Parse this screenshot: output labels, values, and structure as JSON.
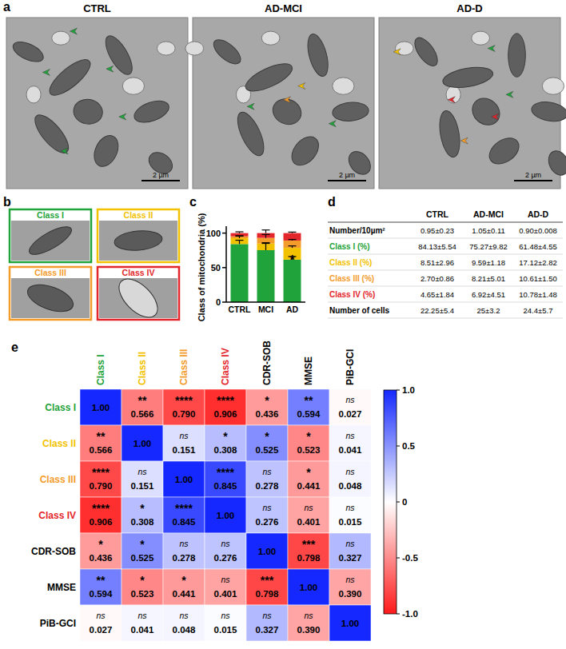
{
  "figure": {
    "panel_a": {
      "letter": "a",
      "images": [
        {
          "title": "CTRL",
          "scale_bar": "2 µm"
        },
        {
          "title": "AD-MCI",
          "scale_bar": "2 µm"
        },
        {
          "title": "AD-D",
          "scale_bar": "2 µm"
        }
      ]
    },
    "panel_b": {
      "letter": "b",
      "images": [
        {
          "title": "Class I",
          "color": "#1fa33a"
        },
        {
          "title": "Class II",
          "color": "#f2c200"
        },
        {
          "title": "Class III",
          "color": "#f39c2b"
        },
        {
          "title": "Class IV",
          "color": "#e3262b"
        }
      ]
    },
    "panel_d": {
      "letter": "d",
      "table": {
        "columns": [
          "CTRL",
          "AD-MCI",
          "AD-D"
        ],
        "rows": [
          {
            "label": "Number/10µm²",
            "color": "#000000",
            "cells": [
              "0.95±0.23",
              "1.05±0.11",
              "0.90±0.008"
            ]
          },
          {
            "label": "Class I (%)",
            "color": "#1fa33a",
            "cells": [
              "84.13±5.54",
              "75.27±9.82",
              "61.48±4.55"
            ]
          },
          {
            "label": "Class II (%)",
            "color": "#f2c200",
            "cells": [
              "8.51±2.96",
              "9.59±1.18",
              "17.12±2.82"
            ]
          },
          {
            "label": "Class III (%)",
            "color": "#f39c2b",
            "cells": [
              "2.70±0.86",
              "8.21±5.01",
              "10.61±1.50"
            ]
          },
          {
            "label": "Class IV (%)",
            "color": "#e3262b",
            "cells": [
              "4.65±1.84",
              "6.92±4.51",
              "10.78±1.48"
            ]
          },
          {
            "label": "Number of cells",
            "color": "#000000",
            "cells": [
              "22.25±5.4",
              "25±3.2",
              "24.4±5.7"
            ]
          }
        ]
      }
    }
  },
  "chart_data": [
    {
      "type": "bar",
      "letter": "c",
      "stacked": true,
      "y_label": "Class of mitochondria (%)",
      "categories": [
        "CTRL",
        "MCI",
        "AD"
      ],
      "series": [
        {
          "color": "#1fa33a",
          "values": [
            84.13,
            75.27,
            61.48
          ],
          "errors": [
            5.54,
            9.82,
            4.55
          ]
        },
        {
          "color": "#f2c200",
          "values": [
            8.51,
            9.59,
            17.12
          ],
          "errors": [
            2.96,
            1.18,
            2.82
          ]
        },
        {
          "color": "#f39c2b",
          "values": [
            2.7,
            8.21,
            10.61
          ],
          "errors": [
            0.86,
            5.01,
            1.5
          ]
        },
        {
          "color": "#e3262b",
          "values": [
            4.65,
            6.92,
            10.78
          ],
          "errors": [
            1.84,
            4.51,
            1.48
          ]
        }
      ],
      "ylim": [
        0,
        110
      ],
      "yticks": [
        0,
        50,
        100
      ],
      "annotations": [
        {
          "text": "*",
          "category": "AD"
        }
      ]
    },
    {
      "type": "heatmap",
      "letter": "e",
      "rows": [
        "Class I",
        "Class II",
        "Class III",
        "Class IV",
        "CDR-SOB",
        "MMSE",
        "PiB-GCI"
      ],
      "columns": [
        "Class I",
        "Class II",
        "Class III",
        "Class IV",
        "CDR-SOB",
        "MMSE",
        "PiB-GCI"
      ],
      "colors": [
        "#1fa33a",
        "#f2c200",
        "#f39c2b",
        "#e3262b",
        "#000000",
        "#000000",
        "#000000"
      ],
      "cells": [
        [
          1.0,
          -0.566,
          -0.79,
          -0.906,
          -0.436,
          0.594,
          -0.027
        ],
        [
          -0.566,
          1.0,
          0.151,
          0.308,
          0.525,
          -0.523,
          0.041
        ],
        [
          -0.79,
          0.151,
          1.0,
          0.845,
          0.278,
          -0.441,
          0.048
        ],
        [
          -0.906,
          0.308,
          0.845,
          1.0,
          0.276,
          -0.401,
          0.015
        ],
        [
          -0.436,
          0.525,
          0.278,
          0.276,
          1.0,
          -0.798,
          0.327
        ],
        [
          0.594,
          -0.523,
          -0.441,
          -0.401,
          -0.798,
          1.0,
          -0.39
        ],
        [
          -0.027,
          0.041,
          0.048,
          0.015,
          0.327,
          -0.39,
          1.0
        ]
      ],
      "cell_labels": [
        [
          "1.00",
          "0.566",
          "0.790",
          "0.906",
          "0.436",
          "0.594",
          "0.027"
        ],
        [
          "0.566",
          "1.00",
          "0.151",
          "0.308",
          "0.525",
          "0.523",
          "0.041"
        ],
        [
          "0.790",
          "0.151",
          "1.00",
          "0.845",
          "0.278",
          "0.441",
          "0.048"
        ],
        [
          "0.906",
          "0.308",
          "0.845",
          "1.00",
          "0.276",
          "0.401",
          "0.015"
        ],
        [
          "0.436",
          "0.525",
          "0.278",
          "0.276",
          "1.00",
          "0.798",
          "0.327"
        ],
        [
          "0.594",
          "0.523",
          "0.441",
          "0.401",
          "0.798",
          "1.00",
          "0.390"
        ],
        [
          "0.027",
          "0.041",
          "0.048",
          "0.015",
          "0.327",
          "0.390",
          "1.00"
        ]
      ],
      "significance": [
        [
          null,
          "**",
          "****",
          "****",
          "*",
          "**",
          "ns"
        ],
        [
          "**",
          null,
          "ns",
          "*",
          "*",
          "*",
          "ns"
        ],
        [
          "****",
          "ns",
          null,
          "****",
          "ns",
          "*",
          "ns"
        ],
        [
          "****",
          "*",
          "****",
          null,
          "ns",
          "ns",
          "ns"
        ],
        [
          "*",
          "*",
          "ns",
          "ns",
          null,
          "***",
          "ns"
        ],
        [
          "**",
          "*",
          "*",
          "ns",
          "***",
          null,
          "ns"
        ],
        [
          "ns",
          "ns",
          "ns",
          "ns",
          "ns",
          "ns",
          null
        ]
      ],
      "color_range": [
        -1,
        1
      ],
      "color_ticks": [
        {
          "value": 1,
          "label": "1.0"
        },
        {
          "value": 0.5,
          "label": "0.5"
        },
        0,
        {
          "value": -0.5,
          "label": "-0.5"
        },
        {
          "value": -1,
          "label": "-1.0"
        }
      ]
    }
  ]
}
